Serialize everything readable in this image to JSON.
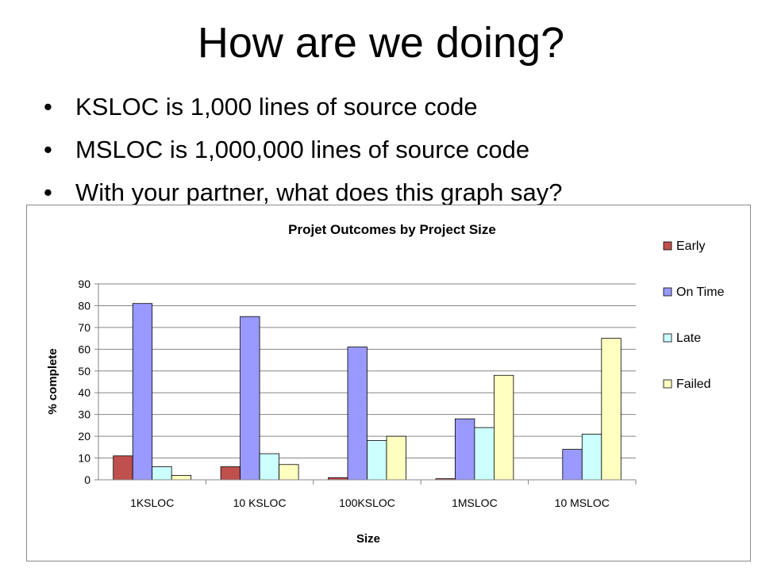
{
  "slide": {
    "title": "How are we doing?",
    "bullets": [
      "KSLOC is 1,000 lines of source code",
      "MSLOC is 1,000,000 lines of source code",
      "With your partner, what does this graph say?"
    ]
  },
  "chart_data": {
    "type": "bar",
    "title": "Projet Outcomes by Project Size",
    "xlabel": "Size",
    "ylabel": "% complete",
    "ylim": [
      0,
      90
    ],
    "yticks": [
      0,
      10,
      20,
      30,
      40,
      50,
      60,
      70,
      80,
      90
    ],
    "grid": true,
    "legend": "right",
    "categories": [
      "1KSLOC",
      "10 KSLOC",
      "100KSLOC",
      "1MSLOC",
      "10 MSLOC"
    ],
    "series": [
      {
        "name": "Early",
        "color": "#c0504d",
        "values": [
          11,
          6,
          1,
          0.5,
          0
        ]
      },
      {
        "name": "On Time",
        "color": "#9999ff",
        "values": [
          81,
          75,
          61,
          28,
          14
        ]
      },
      {
        "name": "Late",
        "color": "#ccffff",
        "values": [
          6,
          12,
          18,
          24,
          21
        ]
      },
      {
        "name": "Failed",
        "color": "#ffffc0",
        "values": [
          2,
          7,
          20,
          48,
          65
        ]
      }
    ]
  }
}
